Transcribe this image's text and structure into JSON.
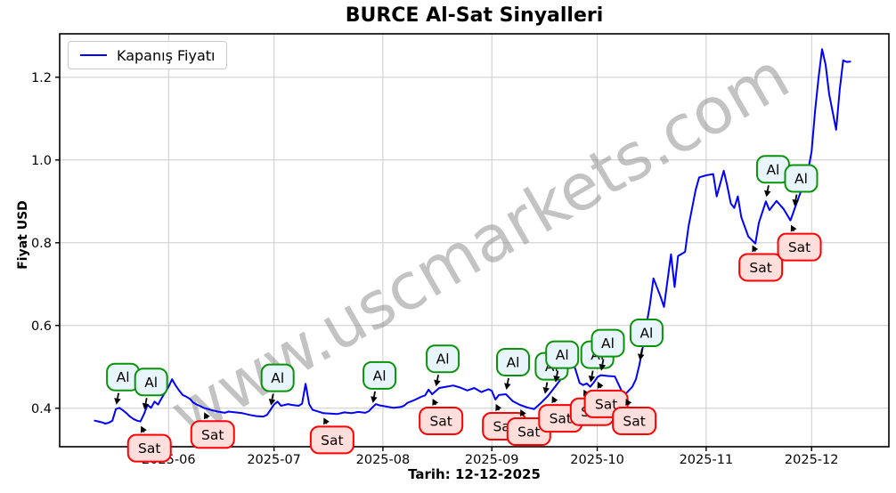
{
  "page": {
    "title": "BURCE Al-Sat Sinyalleri"
  },
  "legend": {
    "label": "Kapanış Fiyatı"
  },
  "watermark": {
    "text": "www.uscmarkets.com",
    "color": "#888888",
    "opacity": 0.5,
    "angle_deg": -30
  },
  "axes": {
    "ylabel": "Fiyat USD",
    "xlabel": "Tarih: 12-12-2025"
  },
  "colors": {
    "line": "#0000ff",
    "grid": "#cccccc",
    "spine": "#000000",
    "buy_box_fill": "#e9f5fc",
    "buy_box_edge": "#0a930a",
    "sell_box_fill": "#ffdedc",
    "sell_box_edge": "#fe0000",
    "arrow": "#000000",
    "tick_text": "#000000"
  },
  "chart_data": {
    "type": "line",
    "title": "BURCE Al-Sat Sinyalleri",
    "xlabel": "Tarih: 12-12-2025",
    "ylabel": "Fiyat USD",
    "grid": true,
    "legend_position": "upper left",
    "xlim": [
      "2025-05-01",
      "2025-12-23"
    ],
    "ylim": [
      0.307,
      1.305
    ],
    "xticks": [
      {
        "label": "2025-06",
        "date": "2025-06-01"
      },
      {
        "label": "2025-07",
        "date": "2025-07-01"
      },
      {
        "label": "2025-08",
        "date": "2025-08-01"
      },
      {
        "label": "2025-09",
        "date": "2025-09-01"
      },
      {
        "label": "2025-10",
        "date": "2025-10-01"
      },
      {
        "label": "2025-11",
        "date": "2025-11-01"
      },
      {
        "label": "2025-12",
        "date": "2025-12-01"
      }
    ],
    "yticks": [
      {
        "label": "0.4",
        "value": 0.4
      },
      {
        "label": "0.6",
        "value": 0.6
      },
      {
        "label": "0.8",
        "value": 0.8
      },
      {
        "label": "1.0",
        "value": 1.0
      },
      {
        "label": "1.2",
        "value": 1.2
      }
    ],
    "series": [
      {
        "name": "Kapanış Fiyatı",
        "color": "#0000ff",
        "points": [
          [
            "2025-05-11",
            0.37
          ],
          [
            "2025-05-12",
            0.368
          ],
          [
            "2025-05-13",
            0.366
          ],
          [
            "2025-05-14",
            0.363
          ],
          [
            "2025-05-15",
            0.365
          ],
          [
            "2025-05-16",
            0.37
          ],
          [
            "2025-05-17",
            0.398
          ],
          [
            "2025-05-18",
            0.401
          ],
          [
            "2025-05-19",
            0.395
          ],
          [
            "2025-05-20",
            0.388
          ],
          [
            "2025-05-21",
            0.38
          ],
          [
            "2025-05-22",
            0.374
          ],
          [
            "2025-05-23",
            0.37
          ],
          [
            "2025-05-24",
            0.368
          ],
          [
            "2025-05-25",
            0.386
          ],
          [
            "2025-05-26",
            0.408
          ],
          [
            "2025-05-27",
            0.401
          ],
          [
            "2025-05-28",
            0.416
          ],
          [
            "2025-05-29",
            0.409
          ],
          [
            "2025-05-30",
            0.424
          ],
          [
            "2025-05-31",
            0.438
          ],
          [
            "2025-06-01",
            0.452
          ],
          [
            "2025-06-02",
            0.47
          ],
          [
            "2025-06-03",
            0.455
          ],
          [
            "2025-06-04",
            0.443
          ],
          [
            "2025-06-05",
            0.432
          ],
          [
            "2025-06-06",
            0.428
          ],
          [
            "2025-06-07",
            0.423
          ],
          [
            "2025-06-08",
            0.414
          ],
          [
            "2025-06-09",
            0.409
          ],
          [
            "2025-06-10",
            0.405
          ],
          [
            "2025-06-11",
            0.401
          ],
          [
            "2025-06-13",
            0.396
          ],
          [
            "2025-06-15",
            0.392
          ],
          [
            "2025-06-17",
            0.389
          ],
          [
            "2025-06-18",
            0.392
          ],
          [
            "2025-06-20",
            0.39
          ],
          [
            "2025-06-22",
            0.388
          ],
          [
            "2025-06-24",
            0.384
          ],
          [
            "2025-06-26",
            0.381
          ],
          [
            "2025-06-28",
            0.38
          ],
          [
            "2025-06-29",
            0.384
          ],
          [
            "2025-06-30",
            0.396
          ],
          [
            "2025-07-01",
            0.409
          ],
          [
            "2025-07-02",
            0.416
          ],
          [
            "2025-07-03",
            0.406
          ],
          [
            "2025-07-05",
            0.41
          ],
          [
            "2025-07-06",
            0.408
          ],
          [
            "2025-07-08",
            0.406
          ],
          [
            "2025-07-09",
            0.411
          ],
          [
            "2025-07-10",
            0.459
          ],
          [
            "2025-07-11",
            0.41
          ],
          [
            "2025-07-12",
            0.396
          ],
          [
            "2025-07-14",
            0.391
          ],
          [
            "2025-07-15",
            0.388
          ],
          [
            "2025-07-17",
            0.387
          ],
          [
            "2025-07-19",
            0.386
          ],
          [
            "2025-07-21",
            0.39
          ],
          [
            "2025-07-23",
            0.388
          ],
          [
            "2025-07-25",
            0.391
          ],
          [
            "2025-07-27",
            0.389
          ],
          [
            "2025-07-28",
            0.393
          ],
          [
            "2025-07-29",
            0.402
          ],
          [
            "2025-07-30",
            0.41
          ],
          [
            "2025-07-31",
            0.407
          ],
          [
            "2025-08-02",
            0.404
          ],
          [
            "2025-08-04",
            0.401
          ],
          [
            "2025-08-06",
            0.403
          ],
          [
            "2025-08-07",
            0.406
          ],
          [
            "2025-08-08",
            0.413
          ],
          [
            "2025-08-10",
            0.42
          ],
          [
            "2025-08-12",
            0.428
          ],
          [
            "2025-08-13",
            0.431
          ],
          [
            "2025-08-14",
            0.445
          ],
          [
            "2025-08-15",
            0.434
          ],
          [
            "2025-08-17",
            0.449
          ],
          [
            "2025-08-19",
            0.452
          ],
          [
            "2025-08-21",
            0.455
          ],
          [
            "2025-08-23",
            0.45
          ],
          [
            "2025-08-25",
            0.443
          ],
          [
            "2025-08-27",
            0.449
          ],
          [
            "2025-08-29",
            0.439
          ],
          [
            "2025-08-31",
            0.446
          ],
          [
            "2025-09-01",
            0.442
          ],
          [
            "2025-09-02",
            0.421
          ],
          [
            "2025-09-03",
            0.432
          ],
          [
            "2025-09-05",
            0.434
          ],
          [
            "2025-09-07",
            0.417
          ],
          [
            "2025-09-09",
            0.408
          ],
          [
            "2025-09-11",
            0.402
          ],
          [
            "2025-09-13",
            0.398
          ],
          [
            "2025-09-15",
            0.413
          ],
          [
            "2025-09-17",
            0.43
          ],
          [
            "2025-09-19",
            0.452
          ],
          [
            "2025-09-21",
            0.474
          ],
          [
            "2025-09-23",
            0.5
          ],
          [
            "2025-09-24",
            0.516
          ],
          [
            "2025-09-25",
            0.488
          ],
          [
            "2025-09-26",
            0.461
          ],
          [
            "2025-09-27",
            0.456
          ],
          [
            "2025-09-28",
            0.46
          ],
          [
            "2025-09-29",
            0.452
          ],
          [
            "2025-09-30",
            0.462
          ],
          [
            "2025-10-01",
            0.475
          ],
          [
            "2025-10-02",
            0.48
          ],
          [
            "2025-10-04",
            0.478
          ],
          [
            "2025-10-06",
            0.477
          ],
          [
            "2025-10-07",
            0.459
          ],
          [
            "2025-10-08",
            0.441
          ],
          [
            "2025-10-09",
            0.434
          ],
          [
            "2025-10-11",
            0.452
          ],
          [
            "2025-10-12",
            0.47
          ],
          [
            "2025-10-13",
            0.505
          ],
          [
            "2025-10-14",
            0.55
          ],
          [
            "2025-10-15",
            0.601
          ],
          [
            "2025-10-16",
            0.65
          ],
          [
            "2025-10-17",
            0.714
          ],
          [
            "2025-10-19",
            0.67
          ],
          [
            "2025-10-20",
            0.645
          ],
          [
            "2025-10-22",
            0.772
          ],
          [
            "2025-10-23",
            0.693
          ],
          [
            "2025-10-24",
            0.768
          ],
          [
            "2025-10-26",
            0.778
          ],
          [
            "2025-10-27",
            0.84
          ],
          [
            "2025-10-29",
            0.927
          ],
          [
            "2025-10-30",
            0.958
          ],
          [
            "2025-11-01",
            0.963
          ],
          [
            "2025-11-03",
            0.966
          ],
          [
            "2025-11-04",
            0.912
          ],
          [
            "2025-11-06",
            0.974
          ],
          [
            "2025-11-07",
            0.938
          ],
          [
            "2025-11-08",
            0.895
          ],
          [
            "2025-11-09",
            0.884
          ],
          [
            "2025-11-10",
            0.912
          ],
          [
            "2025-11-11",
            0.862
          ],
          [
            "2025-11-13",
            0.815
          ],
          [
            "2025-11-15",
            0.798
          ],
          [
            "2025-11-16",
            0.848
          ],
          [
            "2025-11-18",
            0.9
          ],
          [
            "2025-11-19",
            0.879
          ],
          [
            "2025-11-21",
            0.901
          ],
          [
            "2025-11-23",
            0.882
          ],
          [
            "2025-11-25",
            0.854
          ],
          [
            "2025-11-26",
            0.878
          ],
          [
            "2025-11-27",
            0.902
          ],
          [
            "2025-11-28",
            0.925
          ],
          [
            "2025-11-29",
            0.95
          ],
          [
            "2025-11-30",
            0.975
          ],
          [
            "2025-12-01",
            1.02
          ],
          [
            "2025-12-02",
            1.12
          ],
          [
            "2025-12-03",
            1.2
          ],
          [
            "2025-12-04",
            1.268
          ],
          [
            "2025-12-05",
            1.23
          ],
          [
            "2025-12-06",
            1.16
          ],
          [
            "2025-12-08",
            1.073
          ],
          [
            "2025-12-09",
            1.17
          ],
          [
            "2025-12-10",
            1.241
          ],
          [
            "2025-12-11",
            1.237
          ],
          [
            "2025-12-12",
            1.238
          ]
        ]
      }
    ],
    "signals": {
      "buy": {
        "label": "Al",
        "items": [
          {
            "date": "2025-05-17",
            "price": 0.398
          },
          {
            "date": "2025-05-25",
            "price": 0.386
          },
          {
            "date": "2025-06-30",
            "price": 0.396
          },
          {
            "date": "2025-07-29",
            "price": 0.402
          },
          {
            "date": "2025-08-16",
            "price": 0.442
          },
          {
            "date": "2025-09-05",
            "price": 0.434
          },
          {
            "date": "2025-09-16",
            "price": 0.424
          },
          {
            "date": "2025-09-19",
            "price": 0.452
          },
          {
            "date": "2025-09-29",
            "price": 0.452
          },
          {
            "date": "2025-10-02",
            "price": 0.48
          },
          {
            "date": "2025-10-13",
            "price": 0.505
          },
          {
            "date": "2025-11-18",
            "price": 0.9
          },
          {
            "date": "2025-11-26",
            "price": 0.878
          }
        ]
      },
      "sell": {
        "label": "Sat",
        "items": [
          {
            "date": "2025-05-24",
            "price": 0.368
          },
          {
            "date": "2025-06-11",
            "price": 0.401
          },
          {
            "date": "2025-07-15",
            "price": 0.388
          },
          {
            "date": "2025-08-15",
            "price": 0.434
          },
          {
            "date": "2025-09-02",
            "price": 0.421
          },
          {
            "date": "2025-09-09",
            "price": 0.408
          },
          {
            "date": "2025-09-18",
            "price": 0.44
          },
          {
            "date": "2025-09-27",
            "price": 0.456
          },
          {
            "date": "2025-10-01",
            "price": 0.475
          },
          {
            "date": "2025-10-09",
            "price": 0.434
          },
          {
            "date": "2025-11-14",
            "price": 0.805
          },
          {
            "date": "2025-11-25",
            "price": 0.854
          }
        ]
      }
    }
  }
}
